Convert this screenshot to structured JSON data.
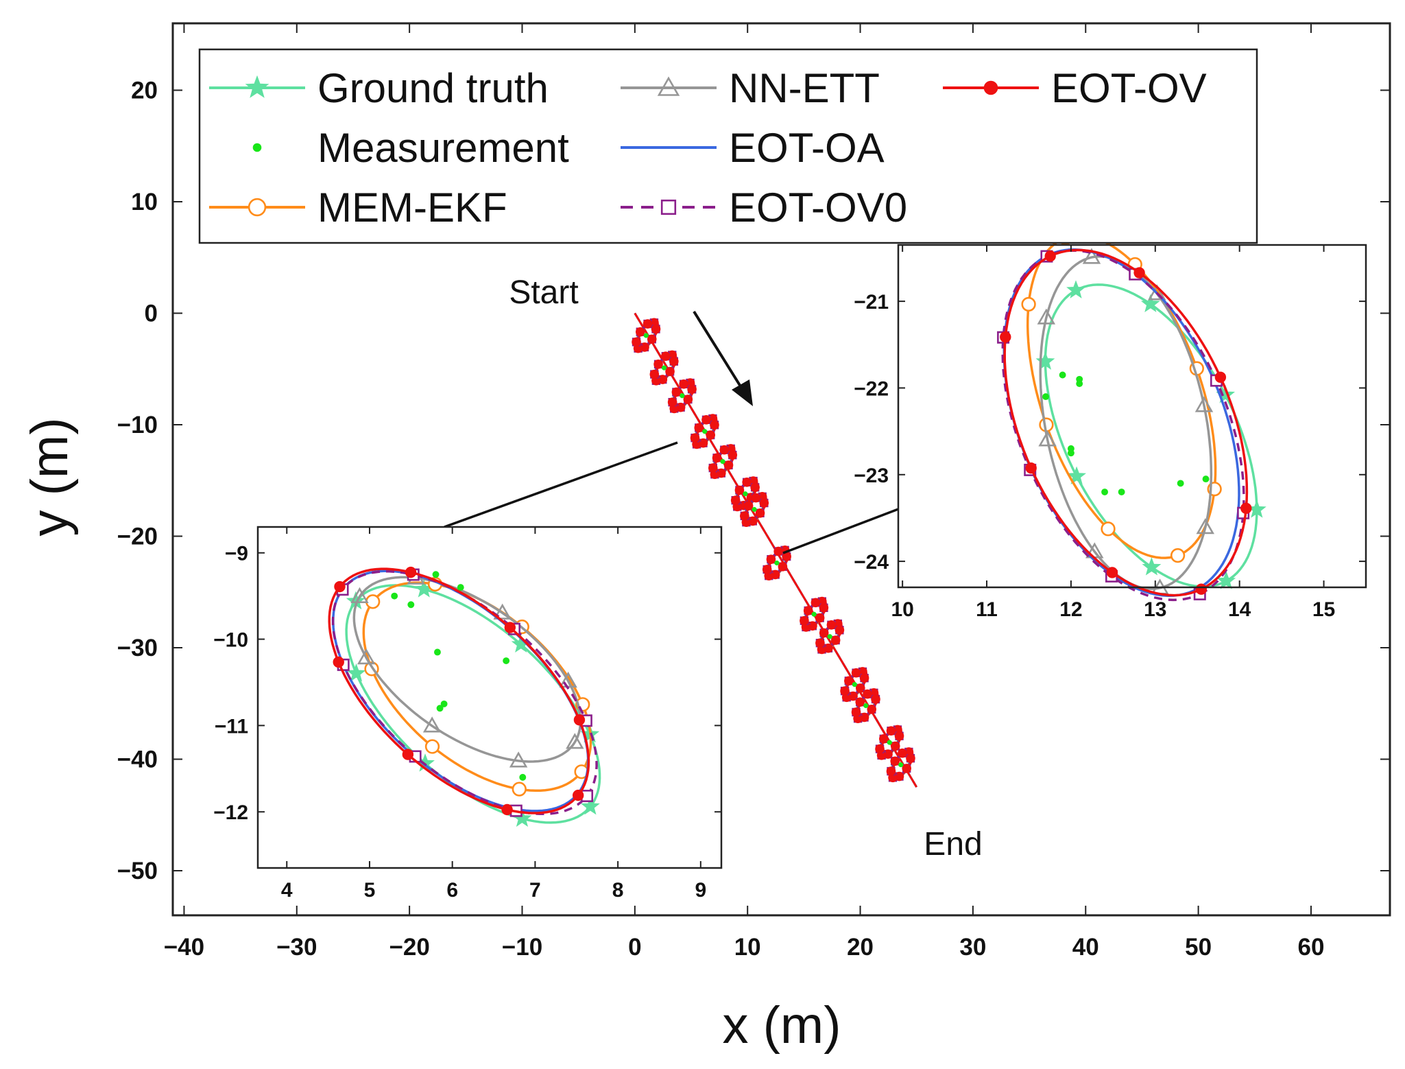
{
  "chart_data": [
    {
      "id": "main",
      "type": "line",
      "xlabel": "x (m)",
      "ylabel": "y (m)",
      "xlim": [
        -41,
        67
      ],
      "ylim": [
        -54,
        26
      ],
      "xticks": [
        -40,
        -30,
        -20,
        -10,
        0,
        10,
        20,
        30,
        40,
        50,
        60
      ],
      "yticks": [
        20,
        10,
        0,
        -10,
        -20,
        -30,
        -40,
        -50
      ],
      "grid": false,
      "legend_position": "top-left",
      "legend": [
        {
          "label": "Ground truth",
          "color": "#5ee0a0",
          "marker": "star",
          "dash": false
        },
        {
          "label": "Measurement",
          "color": "#19e619",
          "marker": "dot",
          "dash": false
        },
        {
          "label": "MEM-EKF",
          "color": "#ff8c1a",
          "marker": "circle",
          "dash": false
        },
        {
          "label": "NN-ETT",
          "color": "#969696",
          "marker": "triangle",
          "dash": false
        },
        {
          "label": "EOT-OA",
          "color": "#3a68e0",
          "marker": "none",
          "dash": false
        },
        {
          "label": "EOT-OV0",
          "color": "#8b1f8b",
          "marker": "square",
          "dash": true
        },
        {
          "label": "EOT-OV",
          "color": "#ee1111",
          "marker": "dot-filled",
          "dash": false
        }
      ],
      "annotations": {
        "start": "Start",
        "end": "End"
      },
      "trajectory": {
        "x": [
          0,
          1,
          2,
          3,
          4,
          5,
          6,
          7,
          8,
          9,
          10,
          11,
          12,
          13,
          14,
          15,
          16,
          17,
          18,
          19,
          20,
          21,
          22,
          23,
          24,
          25
        ],
        "y": [
          0,
          -1.9,
          -3.8,
          -5.7,
          -7.6,
          -9.5,
          -11.4,
          -13.3,
          -15.2,
          -17.1,
          -19.0,
          -20.9,
          -22.8,
          -24.7,
          -26.6,
          -28.5,
          -30.4,
          -32.3,
          -34.2,
          -36.1,
          -38.0,
          -39.9,
          -41.8,
          -43.7,
          -45.6,
          -42.5
        ]
      },
      "extent_centers": [
        {
          "x": 1.0,
          "y": -2.0
        },
        {
          "x": 2.6,
          "y": -4.9
        },
        {
          "x": 4.2,
          "y": -7.4
        },
        {
          "x": 6.2,
          "y": -10.6
        },
        {
          "x": 7.8,
          "y": -13.3
        },
        {
          "x": 9.8,
          "y": -16.2
        },
        {
          "x": 10.6,
          "y": -17.6
        },
        {
          "x": 12.6,
          "y": -22.4
        },
        {
          "x": 15.9,
          "y": -27.0
        },
        {
          "x": 17.3,
          "y": -29.0
        },
        {
          "x": 19.5,
          "y": -33.3
        },
        {
          "x": 20.5,
          "y": -35.2
        },
        {
          "x": 22.6,
          "y": -38.5
        },
        {
          "x": 23.6,
          "y": -40.5
        }
      ]
    },
    {
      "id": "inset-left",
      "type": "line",
      "xlim": [
        3.65,
        9.25
      ],
      "ylim": [
        -12.65,
        -8.7
      ],
      "xticks": [
        4,
        5,
        6,
        7,
        8,
        9
      ],
      "yticks": [
        -9,
        -10,
        -11,
        -12
      ],
      "ellipses": [
        {
          "name": "Ground truth",
          "cx": 6.25,
          "cy": -10.75,
          "a": 1.85,
          "b": 0.9,
          "angle_deg": -40
        },
        {
          "name": "MEM-EKF",
          "cx": 6.3,
          "cy": -10.55,
          "a": 1.6,
          "b": 0.88,
          "angle_deg": -38
        },
        {
          "name": "NN-ETT",
          "cx": 6.18,
          "cy": -10.35,
          "a": 1.55,
          "b": 0.78,
          "angle_deg": -33
        },
        {
          "name": "EOT-OA",
          "cx": 6.1,
          "cy": -10.6,
          "a": 1.85,
          "b": 0.94,
          "angle_deg": -40
        },
        {
          "name": "EOT-OV0",
          "cx": 6.15,
          "cy": -10.62,
          "a": 1.9,
          "b": 0.95,
          "angle_deg": -39
        },
        {
          "name": "EOT-OV",
          "cx": 6.08,
          "cy": -10.6,
          "a": 1.88,
          "b": 0.96,
          "angle_deg": -40
        }
      ],
      "measurements": [
        {
          "x": 5.3,
          "y": -9.5
        },
        {
          "x": 5.5,
          "y": -9.6
        },
        {
          "x": 5.8,
          "y": -9.25
        },
        {
          "x": 6.1,
          "y": -9.4
        },
        {
          "x": 5.82,
          "y": -10.15
        },
        {
          "x": 6.65,
          "y": -10.25
        },
        {
          "x": 5.9,
          "y": -10.75
        },
        {
          "x": 5.85,
          "y": -10.8
        },
        {
          "x": 6.85,
          "y": -11.6
        }
      ]
    },
    {
      "id": "inset-right",
      "type": "line",
      "xlim": [
        9.95,
        15.5
      ],
      "ylim": [
        -24.3,
        -20.35
      ],
      "xticks": [
        10,
        11,
        12,
        13,
        14,
        15
      ],
      "yticks": [
        -21,
        -22,
        -23,
        -24
      ],
      "ellipses": [
        {
          "name": "Ground truth",
          "cx": 12.95,
          "cy": -22.55,
          "a": 1.9,
          "b": 1.0,
          "angle_deg": -62
        },
        {
          "name": "MEM-EKF",
          "cx": 12.6,
          "cy": -22.1,
          "a": 1.95,
          "b": 0.95,
          "angle_deg": -70
        },
        {
          "name": "NN-ETT",
          "cx": 12.65,
          "cy": -22.4,
          "a": 1.95,
          "b": 0.95,
          "angle_deg": -78
        },
        {
          "name": "EOT-OA",
          "cx": 12.6,
          "cy": -22.4,
          "a": 2.12,
          "b": 1.2,
          "angle_deg": -66
        },
        {
          "name": "EOT-OV0",
          "cx": 12.62,
          "cy": -22.43,
          "a": 2.15,
          "b": 1.22,
          "angle_deg": -65
        },
        {
          "name": "EOT-OV",
          "cx": 12.65,
          "cy": -22.4,
          "a": 2.12,
          "b": 1.24,
          "angle_deg": -65
        }
      ],
      "measurements": [
        {
          "x": 11.7,
          "y": -22.1
        },
        {
          "x": 11.9,
          "y": -21.85
        },
        {
          "x": 12.1,
          "y": -21.95
        },
        {
          "x": 12.1,
          "y": -21.9
        },
        {
          "x": 12.0,
          "y": -22.7
        },
        {
          "x": 12.0,
          "y": -22.75
        },
        {
          "x": 12.4,
          "y": -23.2
        },
        {
          "x": 12.6,
          "y": -23.2
        },
        {
          "x": 13.3,
          "y": -23.1
        },
        {
          "x": 13.6,
          "y": -23.05
        }
      ]
    }
  ]
}
